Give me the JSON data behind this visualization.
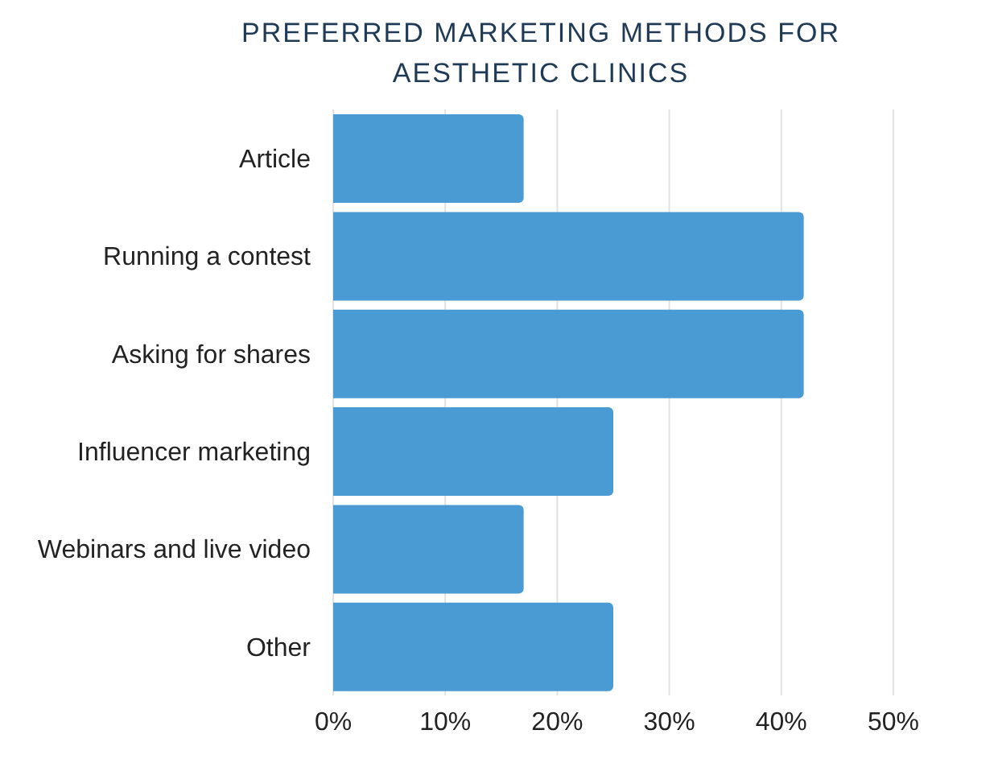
{
  "chart_data": {
    "type": "bar",
    "orientation": "horizontal",
    "title": "PREFERRED MARKETING METHODS FOR AESTHETIC CLINICS",
    "categories": [
      "Article",
      "Running a contest",
      "Asking for shares",
      "Influencer marketing",
      "Webinars and live video",
      "Other"
    ],
    "values": [
      17,
      42,
      42,
      25,
      17,
      25
    ],
    "color": "#4a9ad4",
    "xlim": [
      0,
      50
    ],
    "xticks": [
      {
        "value": 0,
        "label": "0%"
      },
      {
        "value": 10,
        "label": "10%"
      },
      {
        "value": 20,
        "label": "20%"
      },
      {
        "value": 30,
        "label": "30%"
      },
      {
        "value": 40,
        "label": "40%"
      },
      {
        "value": 50,
        "label": "50%"
      }
    ],
    "grid": "x"
  }
}
